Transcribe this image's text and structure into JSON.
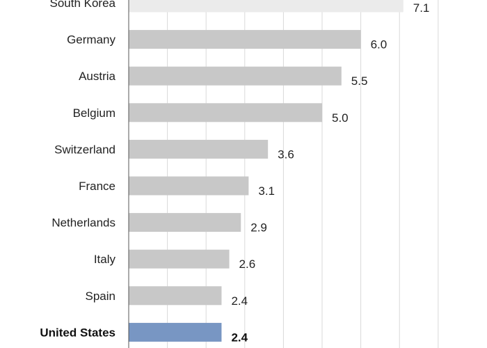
{
  "chart_data": {
    "type": "bar",
    "orientation": "horizontal",
    "categories": [
      "South Korea",
      "Germany",
      "Austria",
      "Belgium",
      "Switzerland",
      "France",
      "Netherlands",
      "Italy",
      "Spain",
      "United States"
    ],
    "values": [
      7.1,
      6.0,
      5.5,
      5.0,
      3.6,
      3.1,
      2.9,
      2.6,
      2.4,
      2.4
    ],
    "value_labels": [
      "7.1",
      "6.0",
      "5.5",
      "5.0",
      "3.6",
      "3.1",
      "2.9",
      "2.6",
      "2.4",
      "2.4"
    ],
    "highlight": "United States",
    "xlim": [
      0,
      8
    ],
    "grid": true,
    "colors": {
      "bar": "#c8c8c8",
      "bar_top": "#ebebeb",
      "highlight": "#7896c3",
      "grid": "#d9d9d9",
      "axis": "#555555"
    }
  }
}
